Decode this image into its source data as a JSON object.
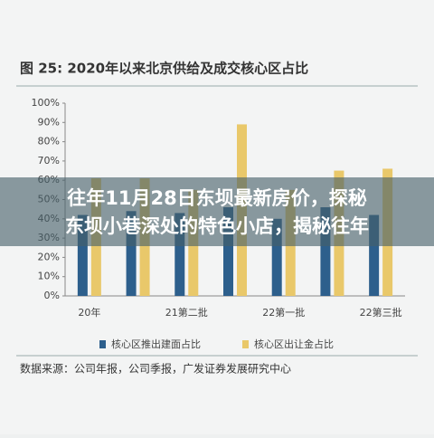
{
  "chart_data": {
    "type": "bar",
    "title": "图 25:  2020年以来北京供给及成交核心区占比",
    "categories": [
      "20年",
      null,
      "21第二批",
      null,
      "22第一批",
      null,
      "22第三批"
    ],
    "series": [
      {
        "name": "核心区推出建面占比",
        "color": "#2d5f8c",
        "values": [
          42,
          44,
          43,
          46,
          40,
          46,
          42
        ]
      },
      {
        "name": "核心区出让金占比",
        "color": "#e9c86a",
        "values": [
          61,
          61,
          55,
          89,
          55,
          65,
          66
        ]
      }
    ],
    "ylim": [
      0,
      100
    ],
    "yticks": [
      {
        "value": 0,
        "label": "0%"
      },
      {
        "value": 10,
        "label": "10%"
      },
      {
        "value": 20,
        "label": "20%"
      },
      {
        "value": 30,
        "label": "30%"
      },
      {
        "value": 40,
        "label": "40%"
      },
      {
        "value": 50,
        "label": "50%"
      },
      {
        "value": 60,
        "label": "60%"
      },
      {
        "value": 70,
        "label": "70%"
      },
      {
        "value": 80,
        "label": "80%"
      },
      {
        "value": 90,
        "label": "90%"
      },
      {
        "value": 100,
        "label": "100%"
      }
    ],
    "source": "数据来源：公司年报，公司季报，广发证券发展研究中心",
    "overlay_lines": [
      "往年11月28日东坝最新房价，探秘",
      "东坝小巷深处的特色小店，揭秘往年"
    ]
  }
}
